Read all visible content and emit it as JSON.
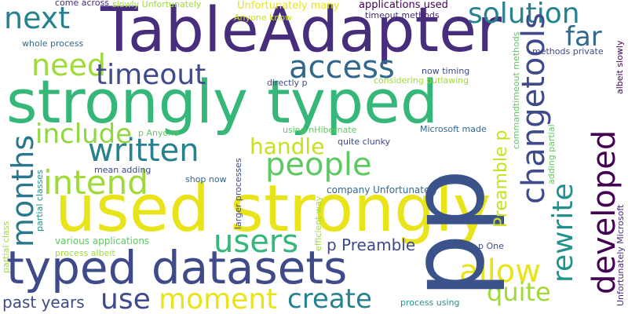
{
  "palette": {
    "background": "#ffffff",
    "purple": "#440154",
    "indigo": "#482878",
    "violet": "#3e4a89",
    "blue": "#31688e",
    "teal": "#26828e",
    "green": "#35b779",
    "lime": "#a0da39",
    "yellow": "#e8e419"
  },
  "words": [
    {
      "text": "TableAdapter",
      "color": "#472d7b"
    },
    {
      "text": "strongly typed",
      "color": "#35b779"
    },
    {
      "text": "used strongly",
      "color": "#e8e419"
    },
    {
      "text": "typed datasets",
      "color": "#3e4a89"
    },
    {
      "text": "pp",
      "color": "#3b528b"
    },
    {
      "text": "next",
      "color": "#26828e"
    },
    {
      "text": "need",
      "color": "#a0da39"
    },
    {
      "text": "access",
      "color": "#31688e"
    },
    {
      "text": "timeout",
      "color": "#3e4a89"
    },
    {
      "text": "solution",
      "color": "#26828e"
    },
    {
      "text": "far",
      "color": "#31688e"
    },
    {
      "text": "include",
      "color": "#90d743"
    },
    {
      "text": "written",
      "color": "#26828e"
    },
    {
      "text": "handle",
      "color": "#c8e020"
    },
    {
      "text": "people",
      "color": "#5ec962"
    },
    {
      "text": "intend",
      "color": "#a0da39"
    },
    {
      "text": "users",
      "color": "#35b779"
    },
    {
      "text": "allow",
      "color": "#e8e419"
    },
    {
      "text": "moment",
      "color": "#e8e419"
    },
    {
      "text": "use",
      "color": "#3e4a89"
    },
    {
      "text": "create",
      "color": "#26828e"
    },
    {
      "text": "quite",
      "color": "#a0da39"
    },
    {
      "text": "past years",
      "color": "#3e4a89"
    },
    {
      "text": "p Preamble",
      "color": "#3e4a89"
    },
    {
      "text": "changetools",
      "color": "#3e4a89"
    },
    {
      "text": "rewrite",
      "color": "#21918c"
    },
    {
      "text": "developed",
      "color": "#440154"
    },
    {
      "text": "months",
      "color": "#2a788e"
    },
    {
      "text": "Preamble p",
      "color": "#c8e020"
    },
    {
      "text": "come across",
      "color": "#482878"
    },
    {
      "text": "slowly Unfortunately",
      "color": "#a0da39"
    },
    {
      "text": "Unfortunately many",
      "color": "#e8e419"
    },
    {
      "text": "Anyone know",
      "color": "#c8e020"
    },
    {
      "text": "applications used",
      "color": "#440154"
    },
    {
      "text": "timeout methods",
      "color": "#482878"
    },
    {
      "text": "whole process",
      "color": "#31688e"
    },
    {
      "text": "methods private",
      "color": "#3e4a89"
    },
    {
      "text": "now timing",
      "color": "#3e4a89"
    },
    {
      "text": "directly p",
      "color": "#3e4a89"
    },
    {
      "text": "considering outlawing",
      "color": "#a0da39"
    },
    {
      "text": "using nHibernate",
      "color": "#5ec962"
    },
    {
      "text": "Microsoft made",
      "color": "#31688e"
    },
    {
      "text": "p Anyone",
      "color": "#5ec962"
    },
    {
      "text": "quite clunky",
      "color": "#3e4a89"
    },
    {
      "text": "mean adding",
      "color": "#3e4a89"
    },
    {
      "text": "shop now",
      "color": "#31688e"
    },
    {
      "text": "company Unfortunately",
      "color": "#31688e"
    },
    {
      "text": "various applications",
      "color": "#5ec962"
    },
    {
      "text": "process albeit",
      "color": "#a0da39"
    },
    {
      "text": "p One",
      "color": "#3e4a89"
    },
    {
      "text": "process using",
      "color": "#21918c"
    },
    {
      "text": "albeit slowly",
      "color": "#440154"
    },
    {
      "text": "commandtimeout methods",
      "color": "#5ec962"
    },
    {
      "text": "adding partial",
      "color": "#5ec962"
    },
    {
      "text": "Unfortunately Microsoft",
      "color": "#482878"
    },
    {
      "text": "partial class",
      "color": "#a0da39"
    },
    {
      "text": "partial classes",
      "color": "#21918c"
    },
    {
      "text": "larger processes",
      "color": "#3e4a89"
    },
    {
      "text": "efficient way",
      "color": "#a0da39"
    }
  ]
}
